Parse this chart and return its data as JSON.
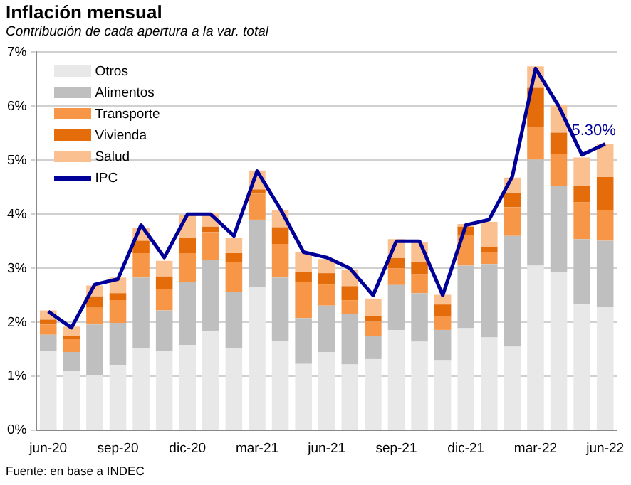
{
  "chart_data": {
    "type": "bar",
    "title": "Inflación mensual",
    "subtitle": "Contribución de cada apertura a la var. total",
    "categories": [
      "jun-20",
      null,
      null,
      "sep-20",
      null,
      null,
      "dic-20",
      null,
      null,
      "mar-21",
      null,
      null,
      "jun-21",
      null,
      null,
      "sep-21",
      null,
      null,
      "dic-21",
      null,
      null,
      "mar-22",
      null,
      null,
      "jun-22"
    ],
    "stacked": true,
    "series": [
      {
        "name": "Otros",
        "color": "#e8e8e8",
        "values": [
          1.47,
          1.1,
          1.03,
          1.21,
          1.53,
          1.47,
          1.58,
          1.83,
          1.52,
          2.65,
          1.65,
          1.23,
          1.45,
          1.22,
          1.32,
          1.86,
          1.64,
          1.3,
          1.89,
          1.72,
          1.55,
          3.05,
          2.93,
          2.33,
          2.28
        ]
      },
      {
        "name": "Alimentos",
        "color": "#bfbfbf",
        "values": [
          0.3,
          0.35,
          0.93,
          0.78,
          1.3,
          0.75,
          1.16,
          1.32,
          1.05,
          1.25,
          1.18,
          0.85,
          0.86,
          0.93,
          0.43,
          0.83,
          0.9,
          0.56,
          1.16,
          1.36,
          2.05,
          1.96,
          1.59,
          1.21,
          1.23
        ]
      },
      {
        "name": "Transporte",
        "color": "#f79646",
        "values": [
          0.19,
          0.24,
          0.31,
          0.42,
          0.45,
          0.39,
          0.54,
          0.52,
          0.54,
          0.48,
          0.62,
          0.66,
          0.39,
          0.26,
          0.26,
          0.31,
          0.35,
          0.26,
          0.55,
          0.22,
          0.53,
          0.6,
          0.59,
          0.68,
          0.56
        ]
      },
      {
        "name": "Vivienda",
        "color": "#e46c0a",
        "values": [
          0.09,
          0.06,
          0.21,
          0.13,
          0.23,
          0.24,
          0.28,
          0.1,
          0.17,
          0.08,
          0.31,
          0.19,
          0.21,
          0.26,
          0.11,
          0.19,
          0.22,
          0.21,
          0.17,
          0.1,
          0.26,
          0.73,
          0.4,
          0.3,
          0.62
        ]
      },
      {
        "name": "Salud",
        "color": "#fac090",
        "values": [
          0.17,
          0.17,
          0.2,
          0.29,
          0.24,
          0.29,
          0.43,
          0.26,
          0.29,
          0.35,
          0.31,
          0.37,
          0.26,
          0.31,
          0.32,
          0.35,
          0.38,
          0.18,
          0.05,
          0.46,
          0.29,
          0.4,
          0.52,
          0.53,
          0.61
        ]
      },
      {
        "name": "IPC",
        "type": "line",
        "color": "#000099",
        "values": [
          2.2,
          1.9,
          2.7,
          2.8,
          3.8,
          3.2,
          4.0,
          4.0,
          3.6,
          4.8,
          4.1,
          3.3,
          3.2,
          3.0,
          2.5,
          3.5,
          3.5,
          2.5,
          3.8,
          3.9,
          4.7,
          6.7,
          6.0,
          5.1,
          5.3
        ]
      }
    ],
    "ylim": [
      0,
      7
    ],
    "yticks": [
      {
        "value": 0,
        "label": "0%"
      },
      {
        "value": 1,
        "label": "1%"
      },
      {
        "value": 2,
        "label": "2%"
      },
      {
        "value": 3,
        "label": "3%"
      },
      {
        "value": 4,
        "label": "4%"
      },
      {
        "value": 5,
        "label": "5%"
      },
      {
        "value": 6,
        "label": "6%"
      },
      {
        "value": 7,
        "label": "7%"
      }
    ],
    "grid": "y",
    "legend": "top left",
    "marker": "none",
    "annotations": [
      {
        "text": "5.30%",
        "x": "jun-22",
        "y": 5.3
      },
      "Fuente: en base a INDEC"
    ]
  }
}
